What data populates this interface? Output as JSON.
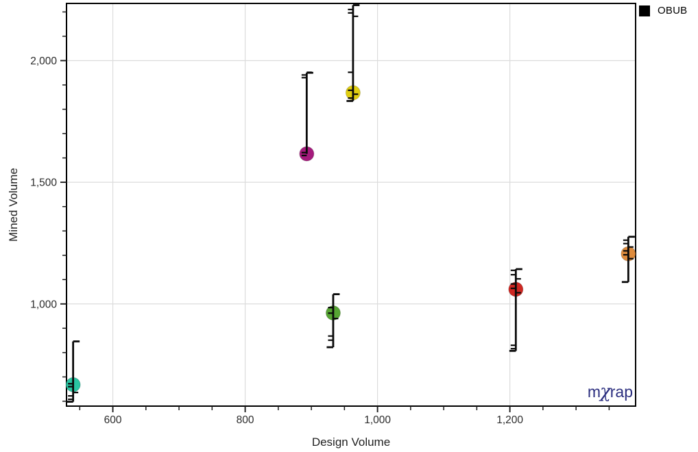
{
  "legend": {
    "label": "OBUB",
    "swatch_color": "#000000"
  },
  "watermark": {
    "m": "m",
    "chi": "χ",
    "rap": "rap",
    "color": "#2b2e7f"
  },
  "colors": {
    "grid": "#dcdcdc",
    "frame": "#000000",
    "tick": "#1a1a1a",
    "tick_label": "#2b2b2b",
    "axis_title": "#1f1f1f",
    "whisker": "#0a0a0a"
  },
  "chart_data": {
    "type": "scatter",
    "title": "",
    "xlabel": "Design Volume",
    "ylabel": "Mined Volume",
    "xlim": [
      530,
      1390
    ],
    "ylim": [
      580,
      2235
    ],
    "grid": true,
    "legend_position": "top-right-outside",
    "x_major_ticks": [
      600,
      800,
      1000,
      1200
    ],
    "x_major_labels": [
      "600",
      "800",
      "1,000",
      "1,200"
    ],
    "x_minor_step": 50,
    "y_major_ticks": [
      1000,
      1500,
      2000
    ],
    "y_major_labels": [
      "1,000",
      "1,500",
      "2,000"
    ],
    "y_minor_step": 100,
    "series_name": "OBUB",
    "points": [
      {
        "x": 540,
        "mean": 668,
        "low": 598,
        "high": 846,
        "color": "#29c5a2",
        "samples": [
          608,
          622,
          636,
          660,
          672
        ]
      },
      {
        "x": 893,
        "mean": 1617,
        "low": 1617,
        "high": 1950,
        "color": "#a51a7c",
        "samples": [
          1930,
          1941,
          1952,
          1610,
          1622
        ]
      },
      {
        "x": 963,
        "mean": 1868,
        "low": 1834,
        "high": 2228,
        "color": "#e0ce10",
        "samples": [
          2210,
          2196,
          2182,
          1952,
          1878,
          1862,
          1846
        ]
      },
      {
        "x": 933,
        "mean": 963,
        "low": 822,
        "high": 1040,
        "color": "#56a433",
        "samples": [
          985,
          962,
          940,
          868,
          851
        ]
      },
      {
        "x": 1209,
        "mean": 1060,
        "low": 807,
        "high": 1143,
        "color": "#ce2823",
        "samples": [
          1138,
          1120,
          1103,
          1082,
          1064,
          1046,
          830,
          816
        ]
      },
      {
        "x": 1379,
        "mean": 1206,
        "low": 1090,
        "high": 1276,
        "color": "#df8c3d",
        "samples": [
          1262,
          1248,
          1234,
          1218,
          1202,
          1186
        ]
      }
    ]
  }
}
